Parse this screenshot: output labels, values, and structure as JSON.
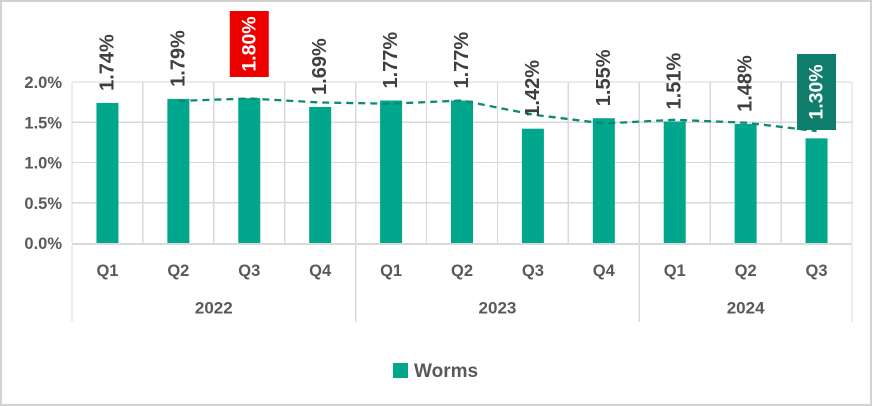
{
  "chart_data": {
    "type": "bar",
    "title": "",
    "categories": [
      "Q1",
      "Q2",
      "Q3",
      "Q4",
      "Q1",
      "Q2",
      "Q3",
      "Q4",
      "Q1",
      "Q2",
      "Q3"
    ],
    "groups": [
      {
        "label": "2022",
        "span": 4
      },
      {
        "label": "2023",
        "span": 4
      },
      {
        "label": "2024",
        "span": 3
      }
    ],
    "series": [
      {
        "name": "Worms",
        "values": [
          1.74,
          1.79,
          1.8,
          1.69,
          1.77,
          1.77,
          1.42,
          1.55,
          1.51,
          1.48,
          1.3
        ],
        "data_labels": [
          "1.74%",
          "1.79%",
          "1.80%",
          "1.69%",
          "1.77%",
          "1.77%",
          "1.42%",
          "1.55%",
          "1.51%",
          "1.48%",
          "1.30%"
        ]
      }
    ],
    "highlights": [
      {
        "index": 2,
        "label": "1.80%",
        "bg": "#EE0000",
        "text_color": "#FFFFFF",
        "meaning": "peak value"
      },
      {
        "index": 10,
        "label": "1.30%",
        "bg": "#0E7D6C",
        "text_color": "#FFFFFF",
        "meaning": "latest value"
      }
    ],
    "trendline": {
      "type": "moving-average",
      "period": 2,
      "style": "dashed",
      "color": "#0C8A74"
    },
    "y_axis": {
      "tick_labels": [
        "0.0%",
        "0.5%",
        "1.0%",
        "1.5%",
        "2.0%"
      ],
      "tick_values": [
        0,
        0.5,
        1.0,
        1.5,
        2.0
      ],
      "min": 0,
      "max": 2,
      "grid": true
    },
    "legend": {
      "position": "bottom",
      "entries": [
        {
          "label": "Worms",
          "color": "#00A78D"
        }
      ]
    },
    "colors": {
      "bar": "#00A78D",
      "grid": "#D9D9D9",
      "axis_text": "#595959",
      "data_label_text": "#3F3F3F",
      "background": "#FFFFFF",
      "border": "#D2D2D2"
    },
    "layout_hints": {
      "grid": "horizontal and vertical light gray",
      "legend_position": "bottom-center",
      "data_label_rotation": -90
    }
  }
}
